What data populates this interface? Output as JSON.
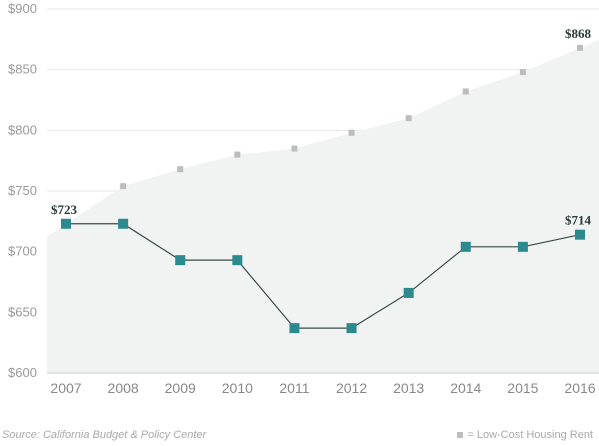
{
  "chart_data": {
    "type": "line",
    "categories": [
      "2007",
      "2008",
      "2009",
      "2010",
      "2011",
      "2012",
      "2013",
      "2014",
      "2015",
      "2016"
    ],
    "series": [
      {
        "name": "Low-Cost Housing Rent",
        "values": [
          723,
          754,
          768,
          780,
          785,
          798,
          810,
          832,
          848,
          868
        ],
        "style": "area-with-square-markers",
        "color": "#bdbdbd",
        "area_color": "#f1f3f3"
      },
      {
        "values": [
          723,
          723,
          693,
          693,
          637,
          637,
          666,
          704,
          704,
          714
        ],
        "style": "line-with-square-markers",
        "color": "#2a8a8e",
        "line_color": "#3a4a4a"
      }
    ],
    "data_labels": [
      {
        "series": 1,
        "index": 0,
        "text": "$723"
      },
      {
        "series": 1,
        "index": 9,
        "text": "$714"
      },
      {
        "series": 0,
        "index": 9,
        "text": "$868"
      }
    ],
    "y_ticks": [
      "$600",
      "$650",
      "$700",
      "$750",
      "$800",
      "$850",
      "$900"
    ],
    "y_tick_values": [
      600,
      650,
      700,
      750,
      800,
      850,
      900
    ],
    "ylim": [
      600,
      900
    ],
    "grid": "horizontal",
    "legend": {
      "position": "bottom-right",
      "text": "= Low-Cost Housing Rent"
    }
  },
  "source_note": "Source: California Budget & Policy Center"
}
